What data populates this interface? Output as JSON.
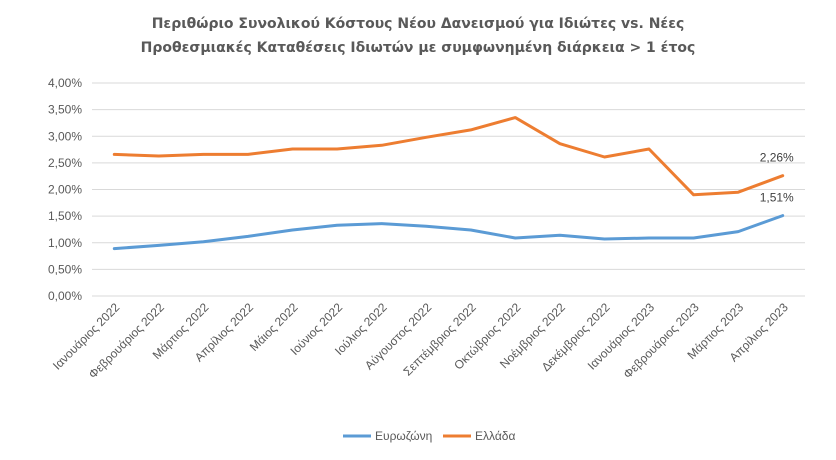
{
  "chart_data": {
    "type": "line",
    "title_line1": "Περιθώριο Συνολικού Κόστους Νέου Δανεισμού για Ιδιώτες vs. Νέες",
    "title_line2": "Προθεσμιακές Καταθέσεις Ιδιωτών με συμφωνημένη διάρκεια > 1 έτος",
    "categories": [
      "Ιανουάριος 2022",
      "Φεβρουάριος 2022",
      "Μάρτιος 2022",
      "Απρίλιος 2022",
      "Μάιος 2022",
      "Ιούνιος 2022",
      "Ιούλιος 2022",
      "Αύγουστος 2022",
      "Σεπτέμβριος 2022",
      "Οκτώβριος 2022",
      "Νοέμβριος 2022",
      "Δεκέμβριος 2022",
      "Ιανουάριος 2023",
      "Φεβρουάριος 2023",
      "Μάρτιος 2023",
      "Απρίλιος 2023"
    ],
    "y_ticks": [
      "0,00%",
      "0,50%",
      "1,00%",
      "1,50%",
      "2,00%",
      "2,50%",
      "3,00%",
      "3,50%",
      "4,00%"
    ],
    "ylim": [
      0,
      4
    ],
    "series": [
      {
        "name": "Ευρωζώνη",
        "color": "#5B9BD5",
        "values": [
          0.89,
          0.95,
          1.02,
          1.12,
          1.24,
          1.33,
          1.36,
          1.31,
          1.24,
          1.09,
          1.14,
          1.07,
          1.09,
          1.09,
          1.21,
          1.51
        ],
        "end_label": "1,51%"
      },
      {
        "name": "Ελλάδα",
        "color": "#ED7D31",
        "values": [
          2.66,
          2.63,
          2.66,
          2.66,
          2.76,
          2.76,
          2.83,
          2.98,
          3.12,
          3.35,
          2.86,
          2.61,
          2.76,
          1.9,
          1.95,
          2.26
        ],
        "end_label": "2,26%"
      }
    ],
    "legend_position": "bottom",
    "grid": true
  }
}
